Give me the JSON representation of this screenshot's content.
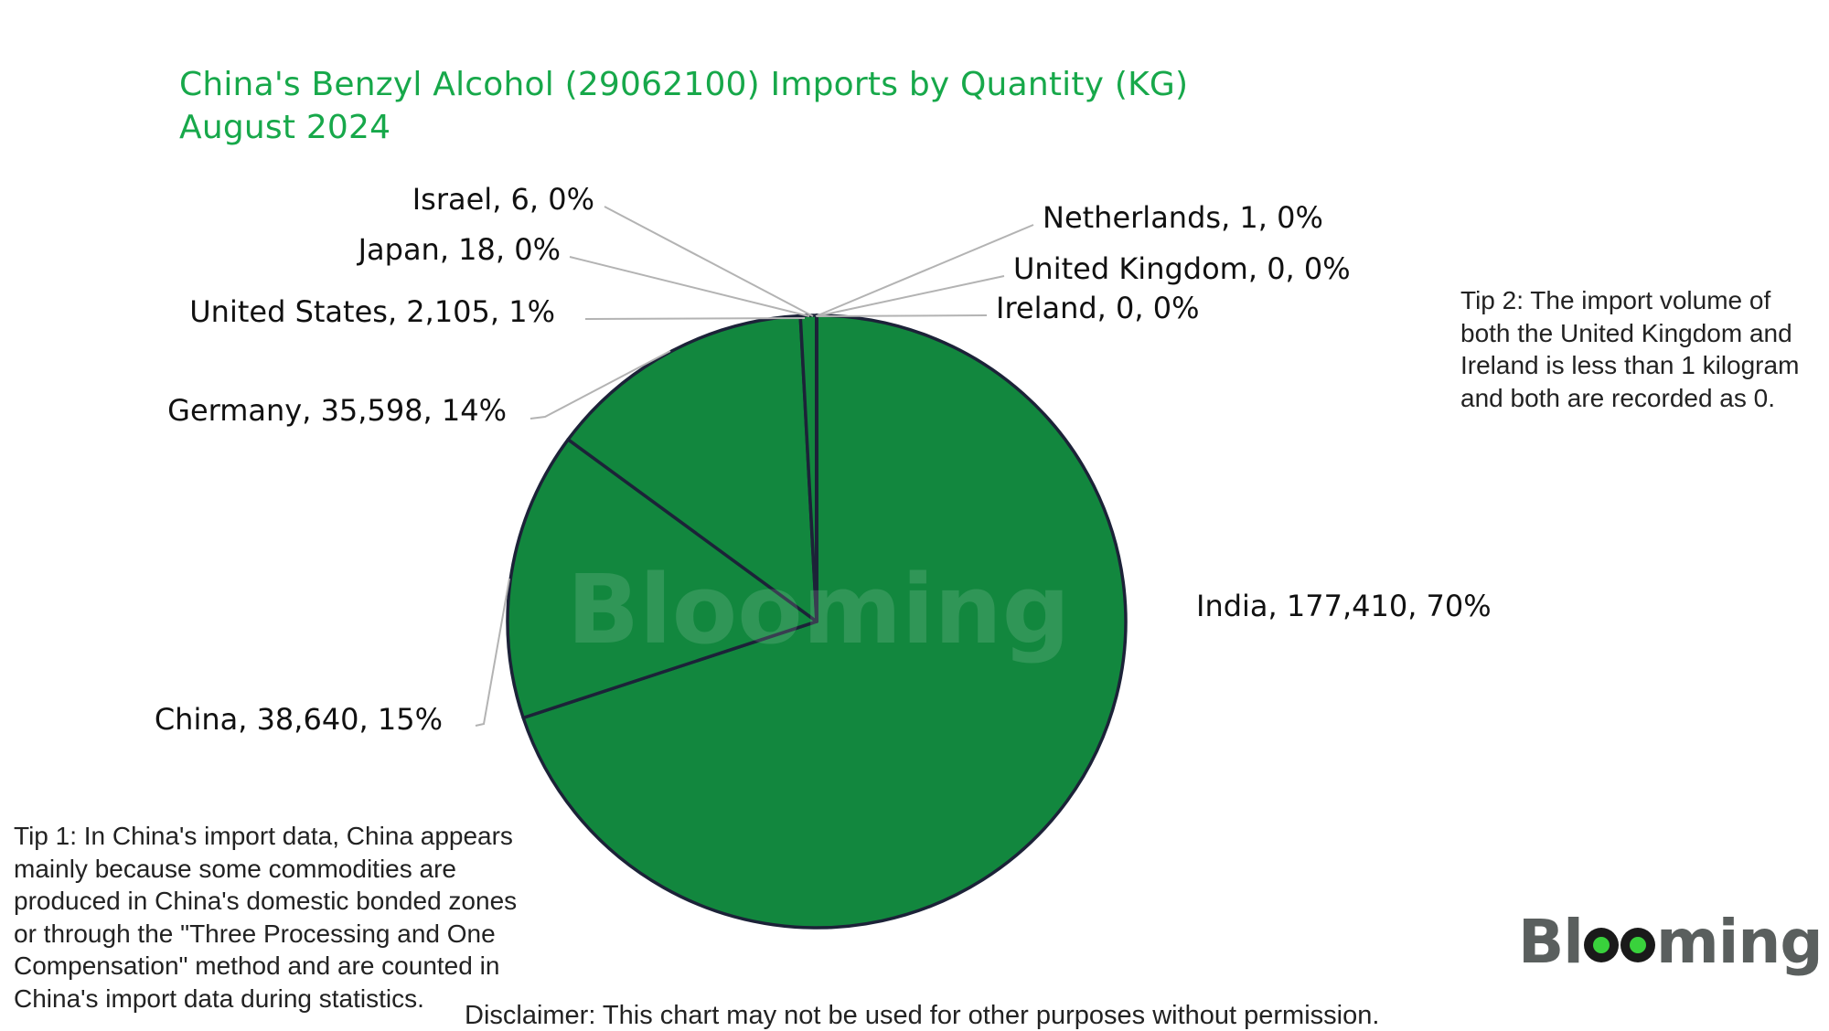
{
  "title_line1": "China's Benzyl Alcohol (29062100) Imports by Quantity (KG)",
  "title_line2": "August 2024",
  "watermark": "Blooming",
  "logo": {
    "text": "Blooming",
    "accent": "#39d23c"
  },
  "colors": {
    "title": "#17a84a",
    "slice_fill": "#12873e",
    "slice_stroke": "#1c2238",
    "leader": "#b3b3b3"
  },
  "tip1": [
    "Tip 1: In China's import data, China appears",
    "mainly because some commodities are",
    "produced in China's domestic bonded zones",
    "or through the \"Three Processing and One",
    "Compensation\" method and are counted in",
    "China's import data during statistics."
  ],
  "tip2": [
    "Tip 2: The import volume of",
    "both the United Kingdom and",
    "Ireland is less than 1 kilogram",
    "and both are recorded as 0."
  ],
  "disclaimer": "Disclaimer: This chart may not be used for other purposes without permission.",
  "chart_data": {
    "type": "pie",
    "title": "China's Benzyl Alcohol (29062100) Imports by Quantity (KG) August 2024",
    "unit": "KG",
    "legend": "none",
    "slices": [
      {
        "name": "India",
        "value": 177410,
        "value_label": "177,410",
        "percent": "70%"
      },
      {
        "name": "China",
        "value": 38640,
        "value_label": "38,640",
        "percent": "15%"
      },
      {
        "name": "Germany",
        "value": 35598,
        "value_label": "35,598",
        "percent": "14%"
      },
      {
        "name": "United States",
        "value": 2105,
        "value_label": "2,105",
        "percent": "1%"
      },
      {
        "name": "Japan",
        "value": 18,
        "value_label": "18",
        "percent": "0%"
      },
      {
        "name": "Israel",
        "value": 6,
        "value_label": "6",
        "percent": "0%"
      },
      {
        "name": "Netherlands",
        "value": 1,
        "value_label": "1",
        "percent": "0%"
      },
      {
        "name": "United Kingdom",
        "value": 0,
        "value_label": "0",
        "percent": "0%"
      },
      {
        "name": "Ireland",
        "value": 0,
        "value_label": "0",
        "percent": "0%"
      }
    ]
  }
}
